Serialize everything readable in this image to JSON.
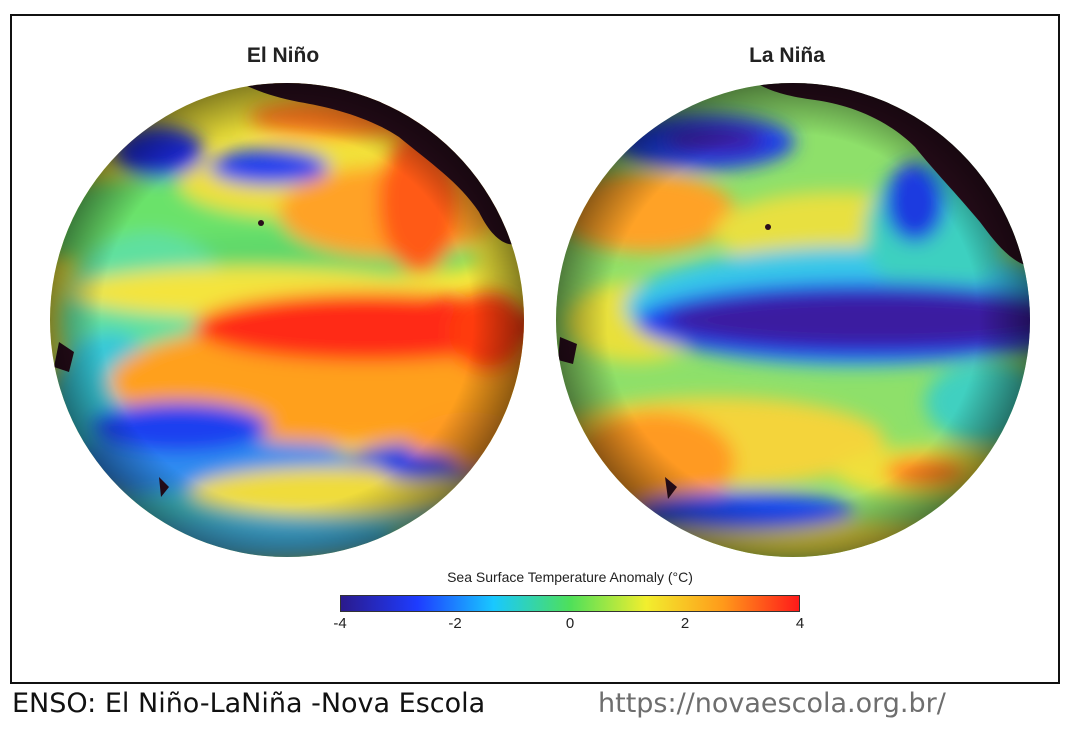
{
  "panels": [
    {
      "title": "El Niño"
    },
    {
      "title": "La Niña"
    }
  ],
  "colorbar": {
    "title": "Sea Surface Temperature Anomaly (°C)",
    "ticks": [
      "-4",
      "-2",
      "0",
      "2",
      "4"
    ],
    "range": [
      -4,
      4
    ],
    "colors": [
      "#2a1a8c",
      "#1e3cff",
      "#19c8ff",
      "#4ee05a",
      "#f2ee2e",
      "#ff9a1a",
      "#ff1a1a"
    ]
  },
  "caption": {
    "text": "ENSO: El Niño-LaNiña -Nova Escola",
    "url": "https://novaescola.org.br/"
  }
}
